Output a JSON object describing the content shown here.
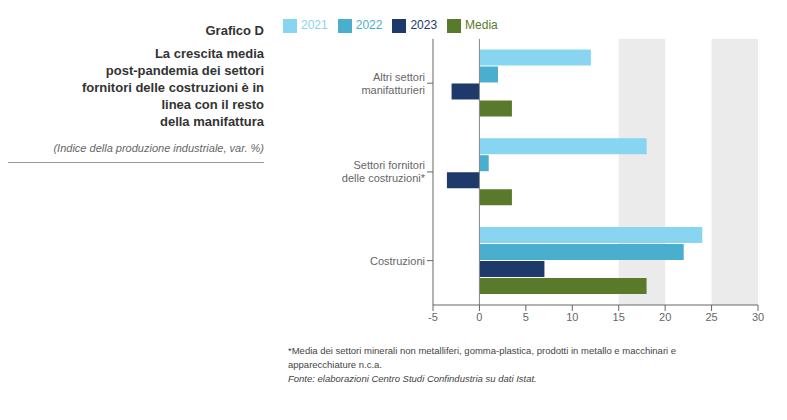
{
  "chart_data": {
    "type": "bar",
    "orientation": "horizontal",
    "title": "Grafico D\nLa crescita media\npost-pandemia dei settori\nfornitori delle costruzioni è in\nlinea con il resto\ndella manifattura",
    "subtitle": "(Indice della produzione industriale, var. %)",
    "annotations": [
      "*Media dei settori minerali non metalliferi, gomma-plastica, prodotti in metallo e macchinari e",
      "apparecchiature n.c.a.",
      "Fonte: elaborazioni Centro Studi Confindustria su dati Istat."
    ],
    "categories": [
      "Costruzioni",
      "Settori fornitori delle costruzioni*",
      "Altri settori manifatturieri"
    ],
    "series": [
      {
        "name": "2021",
        "color": "#87D5F0",
        "values": [
          24.0,
          18.0,
          12.0
        ]
      },
      {
        "name": "2022",
        "color": "#4AAECF",
        "values": [
          22.0,
          1.0,
          2.0
        ]
      },
      {
        "name": "2023",
        "color": "#1D3A6B",
        "values": [
          7.0,
          -3.5,
          -3.0
        ]
      },
      {
        "name": "Media",
        "color": "#5A7A2B",
        "values": [
          18.0,
          3.5,
          3.5
        ]
      }
    ],
    "xlim": [
      -5,
      30
    ],
    "xticks": [
      -5,
      0,
      5,
      10,
      15,
      20,
      25,
      30
    ],
    "x_bands": [
      [
        15,
        20
      ],
      [
        25,
        30
      ]
    ],
    "legend": "upper left",
    "grid": false
  }
}
